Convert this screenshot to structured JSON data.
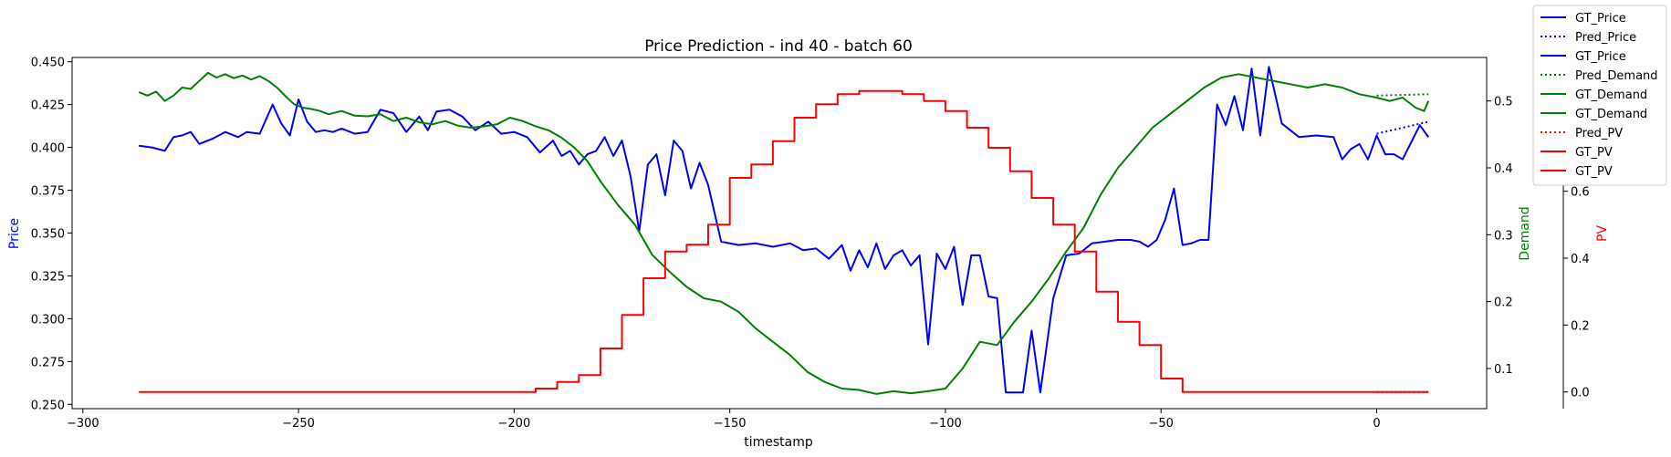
{
  "chart_data": {
    "type": "line",
    "title": "Price Prediction - ind 40 - batch 60",
    "xlabel": "timestamp",
    "xlim": [
      -302.5,
      25.5
    ],
    "xticks": [
      -300,
      -250,
      -200,
      -150,
      -100,
      -50,
      0
    ],
    "axes": [
      {
        "key": "price",
        "label": "Price",
        "color": "#0000ff",
        "side": "left",
        "ylim": [
          0.2475,
          0.4525
        ],
        "ticks": [
          0.25,
          0.275,
          0.3,
          0.325,
          0.35,
          0.375,
          0.4,
          0.425,
          0.45
        ],
        "tick_labels": [
          "0.250",
          "0.275",
          "0.300",
          "0.325",
          "0.350",
          "0.375",
          "0.400",
          "0.425",
          "0.450"
        ]
      },
      {
        "key": "demand",
        "label": "Demand",
        "color": "#008000",
        "side": "right",
        "ylim": [
          0.04,
          0.565
        ],
        "ticks": [
          0.1,
          0.2,
          0.3,
          0.4,
          0.5
        ],
        "tick_labels": [
          "0.1",
          "0.2",
          "0.3",
          "0.4",
          "0.5"
        ]
      },
      {
        "key": "pv",
        "label": "PV",
        "color": "#ff0000",
        "side": "right-offset",
        "ylim": [
          -0.05,
          1.0
        ],
        "ticks": [
          0.0,
          0.2,
          0.4,
          0.6
        ],
        "tick_labels": [
          "0.0",
          "0.2",
          "0.4",
          "0.6"
        ]
      }
    ],
    "series": [
      {
        "name": "GT_Price",
        "axis": "price",
        "color": "#0000ff",
        "style": "solid",
        "x": [
          -287,
          -284,
          -281,
          -279,
          -277,
          -275,
          -273,
          -270,
          -267,
          -264,
          -262,
          -259,
          -256,
          -254,
          -252,
          -250,
          -248,
          -246,
          -244,
          -242,
          -240,
          -237,
          -234,
          -231,
          -228,
          -225,
          -222,
          -220,
          -218,
          -215,
          -212,
          -209,
          -206,
          -203,
          -200,
          -197,
          -194,
          -191,
          -189,
          -187,
          -185,
          -183,
          -181,
          -179,
          -177,
          -175,
          -173,
          -171,
          -169,
          -167,
          -165,
          -163,
          -161,
          -159,
          -157,
          -155,
          -152,
          -148,
          -144,
          -140,
          -136,
          -133,
          -130,
          -127,
          -124,
          -122,
          -120,
          -118,
          -116,
          -114,
          -112,
          -110,
          -108,
          -106,
          -104,
          -102,
          -100,
          -98,
          -96,
          -94,
          -92,
          -90,
          -88,
          -86,
          -84,
          -82,
          -80,
          -78,
          -75,
          -72,
          -69,
          -66,
          -63,
          -60,
          -57,
          -55,
          -53,
          -51,
          -49,
          -47,
          -45,
          -43,
          -41,
          -39,
          -37,
          -35,
          -33,
          -31,
          -29,
          -27,
          -25,
          -22,
          -18,
          -14,
          -10,
          -8,
          -6,
          -4,
          -2,
          0,
          2,
          4,
          6,
          8,
          10,
          12
        ],
        "y": [
          0.401,
          0.4,
          0.398,
          0.406,
          0.407,
          0.409,
          0.402,
          0.405,
          0.409,
          0.406,
          0.409,
          0.408,
          0.425,
          0.414,
          0.407,
          0.428,
          0.415,
          0.409,
          0.41,
          0.409,
          0.411,
          0.408,
          0.409,
          0.422,
          0.42,
          0.409,
          0.418,
          0.41,
          0.421,
          0.422,
          0.418,
          0.41,
          0.415,
          0.408,
          0.409,
          0.406,
          0.397,
          0.404,
          0.395,
          0.398,
          0.39,
          0.396,
          0.398,
          0.406,
          0.395,
          0.404,
          0.383,
          0.351,
          0.39,
          0.396,
          0.372,
          0.404,
          0.398,
          0.376,
          0.391,
          0.378,
          0.345,
          0.343,
          0.344,
          0.342,
          0.344,
          0.34,
          0.341,
          0.335,
          0.343,
          0.328,
          0.34,
          0.33,
          0.344,
          0.329,
          0.337,
          0.34,
          0.331,
          0.337,
          0.285,
          0.338,
          0.329,
          0.342,
          0.308,
          0.337,
          0.337,
          0.313,
          0.312,
          0.257,
          0.257,
          0.257,
          0.293,
          0.257,
          0.312,
          0.337,
          0.338,
          0.344,
          0.345,
          0.346,
          0.346,
          0.345,
          0.342,
          0.346,
          0.358,
          0.376,
          0.343,
          0.344,
          0.346,
          0.346,
          0.425,
          0.413,
          0.43,
          0.41,
          0.446,
          0.407,
          0.447,
          0.414,
          0.406,
          0.407,
          0.406,
          0.393,
          0.399,
          0.402,
          0.393,
          0.407,
          0.396,
          0.396,
          0.393,
          0.403,
          0.413,
          0.406
        ]
      },
      {
        "name": "Pred_Price",
        "axis": "price",
        "color": "#0000ff",
        "style": "dotted",
        "x": [
          0,
          12
        ],
        "y": [
          0.408,
          0.415
        ]
      },
      {
        "name": "GT_Demand",
        "axis": "demand",
        "color": "#008000",
        "style": "solid",
        "x": [
          -287,
          -285,
          -283,
          -281,
          -279,
          -277,
          -275,
          -273,
          -271,
          -269,
          -267,
          -265,
          -263,
          -261,
          -259,
          -257,
          -255,
          -253,
          -251,
          -249,
          -247,
          -245,
          -243,
          -240,
          -237,
          -234,
          -231,
          -228,
          -225,
          -222,
          -219,
          -216,
          -213,
          -210,
          -207,
          -204,
          -201,
          -198,
          -195,
          -192,
          -189,
          -186,
          -183,
          -180,
          -176,
          -172,
          -168,
          -164,
          -160,
          -156,
          -152,
          -148,
          -144,
          -140,
          -136,
          -132,
          -128,
          -124,
          -120,
          -116,
          -112,
          -108,
          -104,
          -100,
          -96,
          -92,
          -88,
          -84,
          -80,
          -76,
          -72,
          -68,
          -64,
          -60,
          -56,
          -52,
          -48,
          -44,
          -40,
          -36,
          -32,
          -28,
          -24,
          -20,
          -16,
          -12,
          -8,
          -4,
          0,
          3,
          6,
          9,
          11,
          12
        ],
        "y": [
          0.513,
          0.508,
          0.514,
          0.5,
          0.508,
          0.52,
          0.518,
          0.53,
          0.542,
          0.535,
          0.54,
          0.534,
          0.538,
          0.532,
          0.537,
          0.53,
          0.52,
          0.507,
          0.495,
          0.49,
          0.488,
          0.485,
          0.48,
          0.485,
          0.478,
          0.477,
          0.48,
          0.47,
          0.475,
          0.468,
          0.465,
          0.47,
          0.463,
          0.46,
          0.462,
          0.465,
          0.475,
          0.47,
          0.462,
          0.456,
          0.445,
          0.43,
          0.41,
          0.38,
          0.345,
          0.315,
          0.27,
          0.245,
          0.222,
          0.205,
          0.2,
          0.185,
          0.16,
          0.14,
          0.12,
          0.095,
          0.08,
          0.07,
          0.068,
          0.062,
          0.066,
          0.063,
          0.066,
          0.07,
          0.1,
          0.14,
          0.135,
          0.17,
          0.2,
          0.235,
          0.275,
          0.31,
          0.36,
          0.4,
          0.43,
          0.46,
          0.48,
          0.5,
          0.52,
          0.535,
          0.54,
          0.535,
          0.53,
          0.525,
          0.52,
          0.525,
          0.52,
          0.51,
          0.505,
          0.5,
          0.505,
          0.49,
          0.485,
          0.5
        ]
      },
      {
        "name": "Pred_Demand",
        "axis": "demand",
        "color": "#008000",
        "style": "dotted",
        "x": [
          0,
          12
        ],
        "y": [
          0.508,
          0.51
        ]
      },
      {
        "name": "GT_PV",
        "axis": "pv",
        "color": "#ff0000",
        "style": "solid",
        "step": true,
        "x": [
          -287,
          -195,
          -190,
          -185,
          -180,
          -175,
          -170,
          -165,
          -160,
          -155,
          -150,
          -145,
          -140,
          -135,
          -130,
          -125,
          -120,
          -115,
          -110,
          -105,
          -100,
          -95,
          -90,
          -85,
          -80,
          -75,
          -70,
          -65,
          -60,
          -55,
          -50,
          -45,
          -40,
          -35,
          -30,
          0
        ],
        "y": [
          0.0,
          0.01,
          0.03,
          0.05,
          0.13,
          0.23,
          0.34,
          0.42,
          0.44,
          0.5,
          0.64,
          0.68,
          0.75,
          0.82,
          0.86,
          0.89,
          0.9,
          0.9,
          0.89,
          0.87,
          0.84,
          0.79,
          0.73,
          0.66,
          0.58,
          0.5,
          0.42,
          0.3,
          0.21,
          0.14,
          0.04,
          0.0,
          0.0,
          0.0,
          0.0,
          0.0
        ]
      },
      {
        "name": "Pred_PV",
        "axis": "pv",
        "color": "#ff0000",
        "style": "dotted",
        "x": [
          0,
          12
        ],
        "y": [
          0.0,
          0.0
        ]
      },
      {
        "name": "GT_PV",
        "axis": "pv",
        "color": "#ff0000",
        "style": "solid",
        "x": [
          0,
          12
        ],
        "y": [
          0.0,
          0.0
        ]
      }
    ],
    "legend": {
      "position": "top-right, outside plot",
      "entries": [
        {
          "label": "GT_Price",
          "color": "#0000ff",
          "style": "solid"
        },
        {
          "label": "Pred_Price",
          "color": "#0000ff",
          "style": "dotted"
        },
        {
          "label": "GT_Price",
          "color": "#0000ff",
          "style": "solid"
        },
        {
          "label": "Pred_Demand",
          "color": "#008000",
          "style": "dotted"
        },
        {
          "label": "GT_Demand",
          "color": "#008000",
          "style": "solid"
        },
        {
          "label": "GT_Demand",
          "color": "#008000",
          "style": "solid"
        },
        {
          "label": "Pred_PV",
          "color": "#ff0000",
          "style": "dotted"
        },
        {
          "label": "GT_PV",
          "color": "#ff0000",
          "style": "solid"
        },
        {
          "label": "GT_PV",
          "color": "#ff0000",
          "style": "solid"
        }
      ]
    },
    "grid": false
  }
}
